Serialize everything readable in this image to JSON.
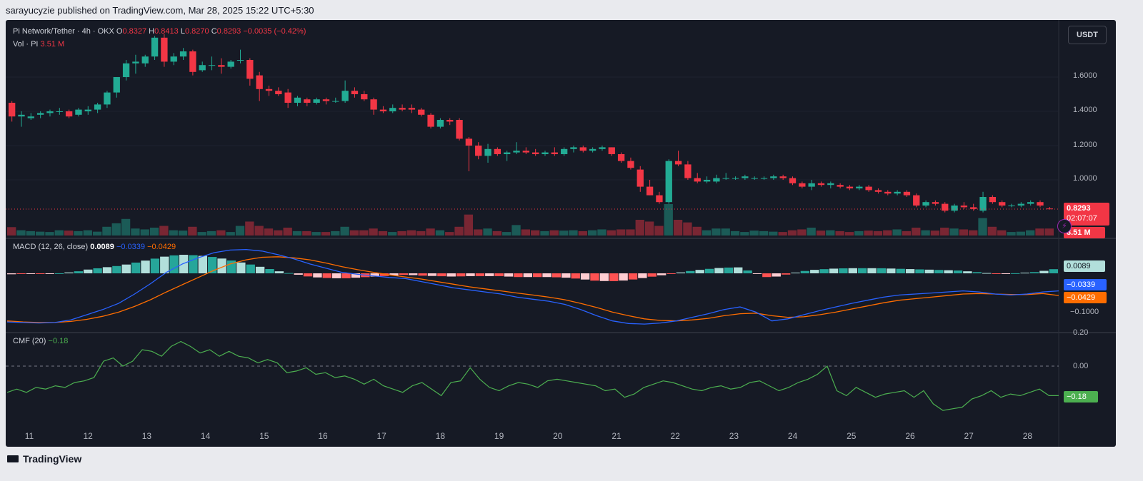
{
  "header": {
    "publisher": "sarayucyzie published on TradingView.com, Mar 28, 2025 15:22 UTC+5:30"
  },
  "main_legend": {
    "symbol": "Pi Network/Tether · 4h · OKX",
    "open_label": "O",
    "open": "0.8327",
    "high_label": "H",
    "high": "0.8413",
    "low_label": "L",
    "low": "0.8270",
    "close_label": "C",
    "close": "0.8293",
    "change": "−0.0035 (−0.42%)"
  },
  "vol_legend": {
    "label": "Vol · PI",
    "value": "3.51 M"
  },
  "currency_button": "USDT",
  "price_axis": {
    "ticks": [
      "1.6000",
      "1.4000",
      "1.2000",
      "1.0000"
    ]
  },
  "price_tag": {
    "value": "0.8293",
    "countdown": "02:07:07",
    "volume": "3.51 M"
  },
  "macd_legend": {
    "label": "MACD (12, 26, close)",
    "hist": "0.0089",
    "macd": "−0.0339",
    "signal": "−0.0429"
  },
  "macd_axis": {
    "ticks": [
      "−0.1000"
    ],
    "hist_tag": "0.0089",
    "macd_tag": "−0.0339",
    "signal_tag": "−0.0429"
  },
  "cmf_legend": {
    "label": "CMF (20)",
    "value": "−0.18"
  },
  "cmf_axis": {
    "ticks": [
      "0.20",
      "0.00"
    ],
    "value_tag": "−0.18"
  },
  "time_axis": {
    "labels": [
      "11",
      "12",
      "13",
      "14",
      "15",
      "16",
      "17",
      "18",
      "19",
      "20",
      "21",
      "22",
      "23",
      "24",
      "25",
      "26",
      "27",
      "28"
    ]
  },
  "footer": {
    "brand": "TradingView"
  },
  "colors": {
    "up": "#22ab94",
    "down": "#f23645",
    "macd": "#2962ff",
    "signal": "#ff6d00",
    "cmf": "#4caf50"
  },
  "chart_data": {
    "type": "candlestick",
    "price": {
      "candles": [
        [
          1.45,
          1.46,
          1.34,
          1.37
        ],
        [
          1.37,
          1.4,
          1.31,
          1.38
        ],
        [
          1.36,
          1.39,
          1.35,
          1.37
        ],
        [
          1.38,
          1.4,
          1.36,
          1.39
        ],
        [
          1.39,
          1.41,
          1.37,
          1.4
        ],
        [
          1.4,
          1.42,
          1.38,
          1.4
        ],
        [
          1.4,
          1.41,
          1.36,
          1.37
        ],
        [
          1.38,
          1.42,
          1.37,
          1.41
        ],
        [
          1.4,
          1.43,
          1.38,
          1.41
        ],
        [
          1.41,
          1.45,
          1.39,
          1.44
        ],
        [
          1.44,
          1.52,
          1.42,
          1.51
        ],
        [
          1.51,
          1.6,
          1.48,
          1.6
        ],
        [
          1.6,
          1.7,
          1.58,
          1.68
        ],
        [
          1.68,
          1.73,
          1.62,
          1.69
        ],
        [
          1.68,
          1.73,
          1.66,
          1.72
        ],
        [
          1.72,
          1.84,
          1.7,
          1.83
        ],
        [
          1.83,
          1.85,
          1.66,
          1.69
        ],
        [
          1.69,
          1.74,
          1.67,
          1.72
        ],
        [
          1.72,
          1.77,
          1.7,
          1.75
        ],
        [
          1.75,
          1.76,
          1.61,
          1.63
        ],
        [
          1.64,
          1.69,
          1.63,
          1.67
        ],
        [
          1.67,
          1.72,
          1.64,
          1.67
        ],
        [
          1.67,
          1.71,
          1.62,
          1.66
        ],
        [
          1.66,
          1.7,
          1.65,
          1.69
        ],
        [
          1.7,
          1.76,
          1.68,
          1.7
        ],
        [
          1.7,
          1.71,
          1.55,
          1.59
        ],
        [
          1.61,
          1.63,
          1.46,
          1.53
        ],
        [
          1.53,
          1.55,
          1.49,
          1.52
        ],
        [
          1.52,
          1.54,
          1.49,
          1.5
        ],
        [
          1.51,
          1.53,
          1.42,
          1.45
        ],
        [
          1.45,
          1.49,
          1.43,
          1.48
        ],
        [
          1.47,
          1.48,
          1.43,
          1.45
        ],
        [
          1.45,
          1.48,
          1.44,
          1.47
        ],
        [
          1.47,
          1.48,
          1.44,
          1.46
        ],
        [
          1.46,
          1.48,
          1.45,
          1.46
        ],
        [
          1.46,
          1.58,
          1.45,
          1.52
        ],
        [
          1.52,
          1.54,
          1.48,
          1.5
        ],
        [
          1.5,
          1.52,
          1.46,
          1.47
        ],
        [
          1.47,
          1.48,
          1.38,
          1.41
        ],
        [
          1.41,
          1.43,
          1.39,
          1.4
        ],
        [
          1.4,
          1.44,
          1.39,
          1.42
        ],
        [
          1.42,
          1.44,
          1.4,
          1.41
        ],
        [
          1.42,
          1.44,
          1.39,
          1.41
        ],
        [
          1.41,
          1.42,
          1.37,
          1.38
        ],
        [
          1.38,
          1.39,
          1.3,
          1.31
        ],
        [
          1.31,
          1.36,
          1.3,
          1.35
        ],
        [
          1.35,
          1.36,
          1.32,
          1.34
        ],
        [
          1.35,
          1.36,
          1.23,
          1.24
        ],
        [
          1.24,
          1.25,
          1.05,
          1.2
        ],
        [
          1.2,
          1.22,
          1.12,
          1.14
        ],
        [
          1.14,
          1.21,
          1.1,
          1.18
        ],
        [
          1.18,
          1.19,
          1.14,
          1.15
        ],
        [
          1.15,
          1.17,
          1.11,
          1.16
        ],
        [
          1.16,
          1.22,
          1.15,
          1.17
        ],
        [
          1.17,
          1.19,
          1.15,
          1.16
        ],
        [
          1.16,
          1.18,
          1.14,
          1.15
        ],
        [
          1.15,
          1.17,
          1.14,
          1.16
        ],
        [
          1.16,
          1.19,
          1.14,
          1.15
        ],
        [
          1.15,
          1.19,
          1.14,
          1.18
        ],
        [
          1.18,
          1.2,
          1.16,
          1.19
        ],
        [
          1.19,
          1.2,
          1.16,
          1.17
        ],
        [
          1.17,
          1.19,
          1.16,
          1.18
        ],
        [
          1.18,
          1.2,
          1.17,
          1.19
        ],
        [
          1.19,
          1.19,
          1.14,
          1.15
        ],
        [
          1.15,
          1.16,
          1.1,
          1.11
        ],
        [
          1.11,
          1.13,
          1.06,
          1.07
        ],
        [
          1.06,
          1.08,
          0.93,
          0.96
        ],
        [
          0.96,
          1.0,
          0.91,
          0.91
        ],
        [
          0.91,
          0.93,
          0.86,
          0.87
        ],
        [
          0.87,
          1.12,
          0.86,
          1.11
        ],
        [
          1.11,
          1.17,
          1.08,
          1.09
        ],
        [
          1.09,
          1.11,
          1.0,
          1.01
        ],
        [
          1.01,
          1.04,
          0.98,
          0.99
        ],
        [
          0.99,
          1.02,
          0.98,
          1.0
        ],
        [
          0.99,
          1.03,
          0.98,
          1.01
        ],
        [
          1.01,
          1.04,
          1.0,
          1.01
        ],
        [
          1.01,
          1.02,
          1.0,
          1.01
        ],
        [
          1.01,
          1.03,
          1.0,
          1.02
        ],
        [
          1.01,
          1.02,
          1.0,
          1.01
        ],
        [
          1.01,
          1.02,
          1.0,
          1.01
        ],
        [
          1.01,
          1.03,
          1.0,
          1.02
        ],
        [
          1.02,
          1.03,
          1.0,
          1.01
        ],
        [
          1.01,
          1.02,
          0.97,
          0.98
        ],
        [
          0.98,
          0.99,
          0.95,
          0.96
        ],
        [
          0.96,
          1.0,
          0.94,
          0.98
        ],
        [
          0.98,
          0.99,
          0.96,
          0.97
        ],
        [
          0.97,
          0.99,
          0.95,
          0.98
        ],
        [
          0.97,
          0.98,
          0.95,
          0.96
        ],
        [
          0.96,
          0.97,
          0.94,
          0.95
        ],
        [
          0.95,
          0.97,
          0.94,
          0.96
        ],
        [
          0.96,
          0.97,
          0.93,
          0.94
        ],
        [
          0.94,
          0.95,
          0.92,
          0.93
        ],
        [
          0.93,
          0.94,
          0.91,
          0.92
        ],
        [
          0.92,
          0.94,
          0.91,
          0.93
        ],
        [
          0.93,
          0.94,
          0.9,
          0.91
        ],
        [
          0.91,
          0.92,
          0.84,
          0.85
        ],
        [
          0.85,
          0.88,
          0.84,
          0.87
        ],
        [
          0.87,
          0.88,
          0.85,
          0.86
        ],
        [
          0.86,
          0.87,
          0.81,
          0.82
        ],
        [
          0.82,
          0.86,
          0.81,
          0.85
        ],
        [
          0.85,
          0.87,
          0.83,
          0.84
        ],
        [
          0.84,
          0.86,
          0.82,
          0.83
        ],
        [
          0.82,
          0.93,
          0.81,
          0.9
        ],
        [
          0.9,
          0.91,
          0.86,
          0.87
        ],
        [
          0.87,
          0.88,
          0.84,
          0.85
        ],
        [
          0.85,
          0.86,
          0.84,
          0.85
        ],
        [
          0.85,
          0.87,
          0.84,
          0.86
        ],
        [
          0.86,
          0.88,
          0.85,
          0.87
        ],
        [
          0.87,
          0.88,
          0.84,
          0.85
        ],
        [
          0.8327,
          0.8413,
          0.827,
          0.8293
        ]
      ],
      "volume": [
        0.48,
        0.3,
        0.25,
        0.22,
        0.2,
        0.3,
        0.28,
        0.25,
        0.3,
        0.22,
        0.5,
        0.7,
        0.95,
        0.4,
        0.35,
        0.45,
        0.55,
        0.3,
        0.28,
        0.5,
        0.2,
        0.25,
        0.3,
        0.2,
        0.55,
        0.8,
        0.55,
        0.4,
        0.3,
        0.45,
        0.25,
        0.25,
        0.2,
        0.2,
        0.25,
        0.5,
        0.3,
        0.3,
        0.4,
        0.25,
        0.2,
        0.25,
        0.3,
        0.25,
        0.4,
        0.3,
        0.2,
        0.5,
        1.2,
        0.35,
        0.4,
        0.25,
        0.2,
        0.6,
        0.35,
        0.3,
        0.25,
        0.3,
        0.28,
        0.3,
        0.25,
        0.3,
        0.35,
        0.3,
        0.35,
        0.35,
        0.9,
        0.8,
        0.55,
        1.8,
        0.9,
        0.75,
        0.5,
        0.3,
        0.4,
        0.4,
        0.25,
        0.2,
        0.28,
        0.25,
        0.22,
        0.2,
        0.3,
        0.35,
        0.45,
        0.28,
        0.3,
        0.25,
        0.2,
        0.25,
        0.28,
        0.25,
        0.3,
        0.35,
        0.25,
        0.45,
        0.3,
        0.28,
        0.45,
        0.4,
        0.35,
        0.3,
        1.0,
        0.5,
        0.3,
        0.2,
        0.22,
        0.3,
        0.4,
        0.4
      ],
      "last_price": 0.8293
    },
    "macd": {
      "macd_line": [
        -0.094,
        -0.095,
        -0.096,
        -0.095,
        -0.09,
        -0.08,
        -0.07,
        -0.058,
        -0.04,
        -0.02,
        0.002,
        0.018,
        0.03,
        0.04,
        0.045,
        0.046,
        0.043,
        0.036,
        0.028,
        0.018,
        0.01,
        0.002,
        -0.002,
        -0.005,
        -0.008,
        -0.01,
        -0.016,
        -0.022,
        -0.028,
        -0.032,
        -0.036,
        -0.04,
        -0.046,
        -0.05,
        -0.054,
        -0.06,
        -0.07,
        -0.082,
        -0.092,
        -0.097,
        -0.098,
        -0.096,
        -0.092,
        -0.085,
        -0.078,
        -0.07,
        -0.065,
        -0.075,
        -0.092,
        -0.088,
        -0.08,
        -0.072,
        -0.065,
        -0.058,
        -0.052,
        -0.046,
        -0.042,
        -0.04,
        -0.038,
        -0.036,
        -0.034,
        -0.036,
        -0.04,
        -0.042,
        -0.04,
        -0.036,
        -0.034
      ],
      "signal_line": [
        -0.092,
        -0.094,
        -0.095,
        -0.095,
        -0.093,
        -0.089,
        -0.083,
        -0.075,
        -0.064,
        -0.051,
        -0.036,
        -0.022,
        -0.008,
        0.006,
        0.018,
        0.026,
        0.031,
        0.032,
        0.03,
        0.026,
        0.02,
        0.013,
        0.007,
        0.002,
        -0.003,
        -0.007,
        -0.011,
        -0.016,
        -0.021,
        -0.026,
        -0.03,
        -0.034,
        -0.038,
        -0.042,
        -0.046,
        -0.051,
        -0.058,
        -0.066,
        -0.075,
        -0.082,
        -0.088,
        -0.091,
        -0.092,
        -0.09,
        -0.087,
        -0.082,
        -0.078,
        -0.077,
        -0.082,
        -0.085,
        -0.084,
        -0.08,
        -0.075,
        -0.069,
        -0.063,
        -0.057,
        -0.052,
        -0.049,
        -0.046,
        -0.043,
        -0.04,
        -0.039,
        -0.04,
        -0.041,
        -0.041,
        -0.039,
        -0.0429
      ],
      "last_hist": 0.0089,
      "last_macd": -0.0339,
      "last_signal": -0.0429
    },
    "cmf": {
      "values": [
        -0.16,
        -0.14,
        -0.16,
        -0.13,
        -0.14,
        -0.12,
        -0.13,
        -0.1,
        -0.09,
        -0.07,
        0.03,
        0.05,
        0.0,
        0.03,
        0.1,
        0.09,
        0.06,
        0.12,
        0.15,
        0.12,
        0.08,
        0.1,
        0.06,
        0.09,
        0.06,
        0.05,
        0.02,
        0.04,
        0.02,
        -0.04,
        -0.03,
        -0.01,
        -0.05,
        -0.04,
        -0.07,
        -0.06,
        -0.08,
        -0.11,
        -0.08,
        -0.12,
        -0.14,
        -0.16,
        -0.12,
        -0.1,
        -0.14,
        -0.18,
        -0.1,
        -0.09,
        -0.01,
        -0.08,
        -0.13,
        -0.15,
        -0.12,
        -0.1,
        -0.11,
        -0.13,
        -0.09,
        -0.08,
        -0.09,
        -0.1,
        -0.11,
        -0.12,
        -0.15,
        -0.14,
        -0.19,
        -0.17,
        -0.13,
        -0.11,
        -0.09,
        -0.1,
        -0.12,
        -0.14,
        -0.15,
        -0.13,
        -0.12,
        -0.14,
        -0.13,
        -0.1,
        -0.09,
        -0.12,
        -0.15,
        -0.13,
        -0.1,
        -0.08,
        -0.05,
        0.0,
        -0.15,
        -0.18,
        -0.13,
        -0.16,
        -0.19,
        -0.17,
        -0.16,
        -0.15,
        -0.19,
        -0.15,
        -0.23,
        -0.27,
        -0.26,
        -0.25,
        -0.2,
        -0.18,
        -0.15,
        -0.19,
        -0.17,
        -0.18,
        -0.16,
        -0.14,
        -0.18,
        -0.18
      ],
      "last": -0.18,
      "zero_line": 0.0
    },
    "xlabel": "",
    "ylabel": ""
  }
}
